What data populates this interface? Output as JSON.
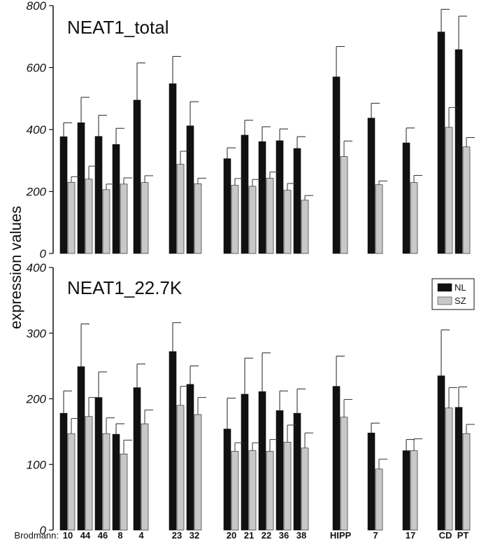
{
  "chart_data": {
    "type": "bar",
    "ylabel": "expression values",
    "xaxis_prefix": "Brodmann:",
    "categories": [
      "10",
      "44",
      "46",
      "8",
      "4",
      "23",
      "32",
      "20",
      "21",
      "22",
      "36",
      "38",
      "HIPP",
      "7",
      "17",
      "CD",
      "PT"
    ],
    "legend": [
      {
        "name": "NL",
        "color": "#111111"
      },
      {
        "name": "SZ",
        "color": "#c8c8c8"
      }
    ],
    "panels": [
      {
        "title": "NEAT1_total",
        "ylim": [
          0,
          800
        ],
        "yticks": [
          0,
          200,
          400,
          600,
          800
        ],
        "series": [
          {
            "name": "NL",
            "values": [
              377,
              422,
              378,
              352,
              495,
              548,
              412,
              306,
              382,
              361,
              364,
              339,
              570,
              437,
              357,
              715,
              658
            ],
            "errors": [
              45,
              82,
              68,
              52,
              120,
              88,
              78,
              35,
              48,
              48,
              38,
              38,
              98,
              48,
              48,
              73,
              108
            ]
          },
          {
            "name": "SZ",
            "values": [
              230,
              240,
              206,
              224,
              229,
              288,
              225,
              220,
              217,
              243,
              204,
              172,
              313,
              222,
              229,
              407,
              344
            ],
            "errors": [
              18,
              42,
              18,
              20,
              22,
              42,
              18,
              22,
              22,
              20,
              22,
              15,
              50,
              12,
              23,
              64,
              30
            ]
          }
        ]
      },
      {
        "title": "NEAT1_22.7K",
        "ylim": [
          0,
          400
        ],
        "yticks": [
          0,
          100,
          200,
          300,
          400
        ],
        "series": [
          {
            "name": "NL",
            "values": [
              178,
              249,
              202,
              146,
              217,
              272,
              222,
              154,
              207,
              211,
              182,
              178,
              219,
              148,
              121,
              235,
              187
            ],
            "errors": [
              34,
              65,
              39,
              16,
              36,
              44,
              28,
              47,
              55,
              59,
              30,
              37,
              46,
              15,
              17,
              70,
              31
            ]
          },
          {
            "name": "SZ",
            "values": [
              147,
              173,
              147,
              116,
              162,
              190,
              176,
              120,
              121,
              120,
              134,
              125,
              172,
              93,
              121,
              186,
              147
            ],
            "errors": [
              23,
              29,
              24,
              21,
              21,
              29,
              26,
              13,
              12,
              18,
              26,
              23,
              27,
              15,
              18,
              31,
              14
            ]
          }
        ]
      }
    ]
  }
}
